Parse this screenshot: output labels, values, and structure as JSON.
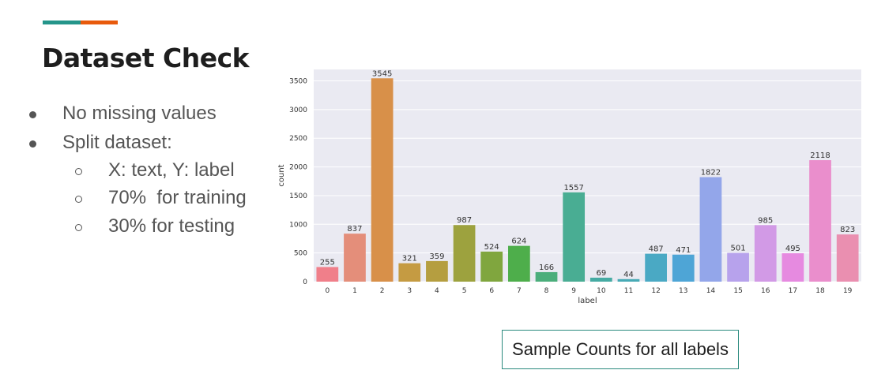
{
  "slide": {
    "title": "Dataset Check",
    "accent_colors": [
      "#24958a",
      "#e85a0c"
    ],
    "bullets": [
      {
        "level": 1,
        "text": "No missing values"
      },
      {
        "level": 1,
        "text": "Split dataset:"
      },
      {
        "level": 2,
        "text": "X: text, Y: label"
      },
      {
        "level": 2,
        "text": "70%  for training"
      },
      {
        "level": 2,
        "text": "30% for testing"
      }
    ],
    "caption": "Sample Counts for all labels"
  },
  "chart_data": {
    "type": "bar",
    "title": "",
    "xlabel": "label",
    "ylabel": "count",
    "categories": [
      "0",
      "1",
      "2",
      "3",
      "4",
      "5",
      "6",
      "7",
      "8",
      "9",
      "10",
      "11",
      "12",
      "13",
      "14",
      "15",
      "16",
      "17",
      "18",
      "19"
    ],
    "values": [
      255,
      837,
      3545,
      321,
      359,
      987,
      524,
      624,
      166,
      1557,
      69,
      44,
      487,
      471,
      1822,
      501,
      985,
      495,
      2118,
      823
    ],
    "ylim": [
      0,
      3700
    ],
    "yticks": [
      0,
      500,
      1000,
      1500,
      2000,
      2500,
      3000,
      3500
    ],
    "grid": true,
    "background": "#eaeaf2",
    "colors": [
      "#f07f8a",
      "#e48e7a",
      "#d89049",
      "#c59b42",
      "#b59e40",
      "#9da23e",
      "#80a63e",
      "#4eae4b",
      "#4bae7b",
      "#49ad93",
      "#46aba3",
      "#47aab5",
      "#4aa9c4",
      "#4ea5d6",
      "#93a6ea",
      "#b7a2ec",
      "#d29ae6",
      "#e68ae0",
      "#ea8ecc",
      "#ea8fb0"
    ]
  }
}
